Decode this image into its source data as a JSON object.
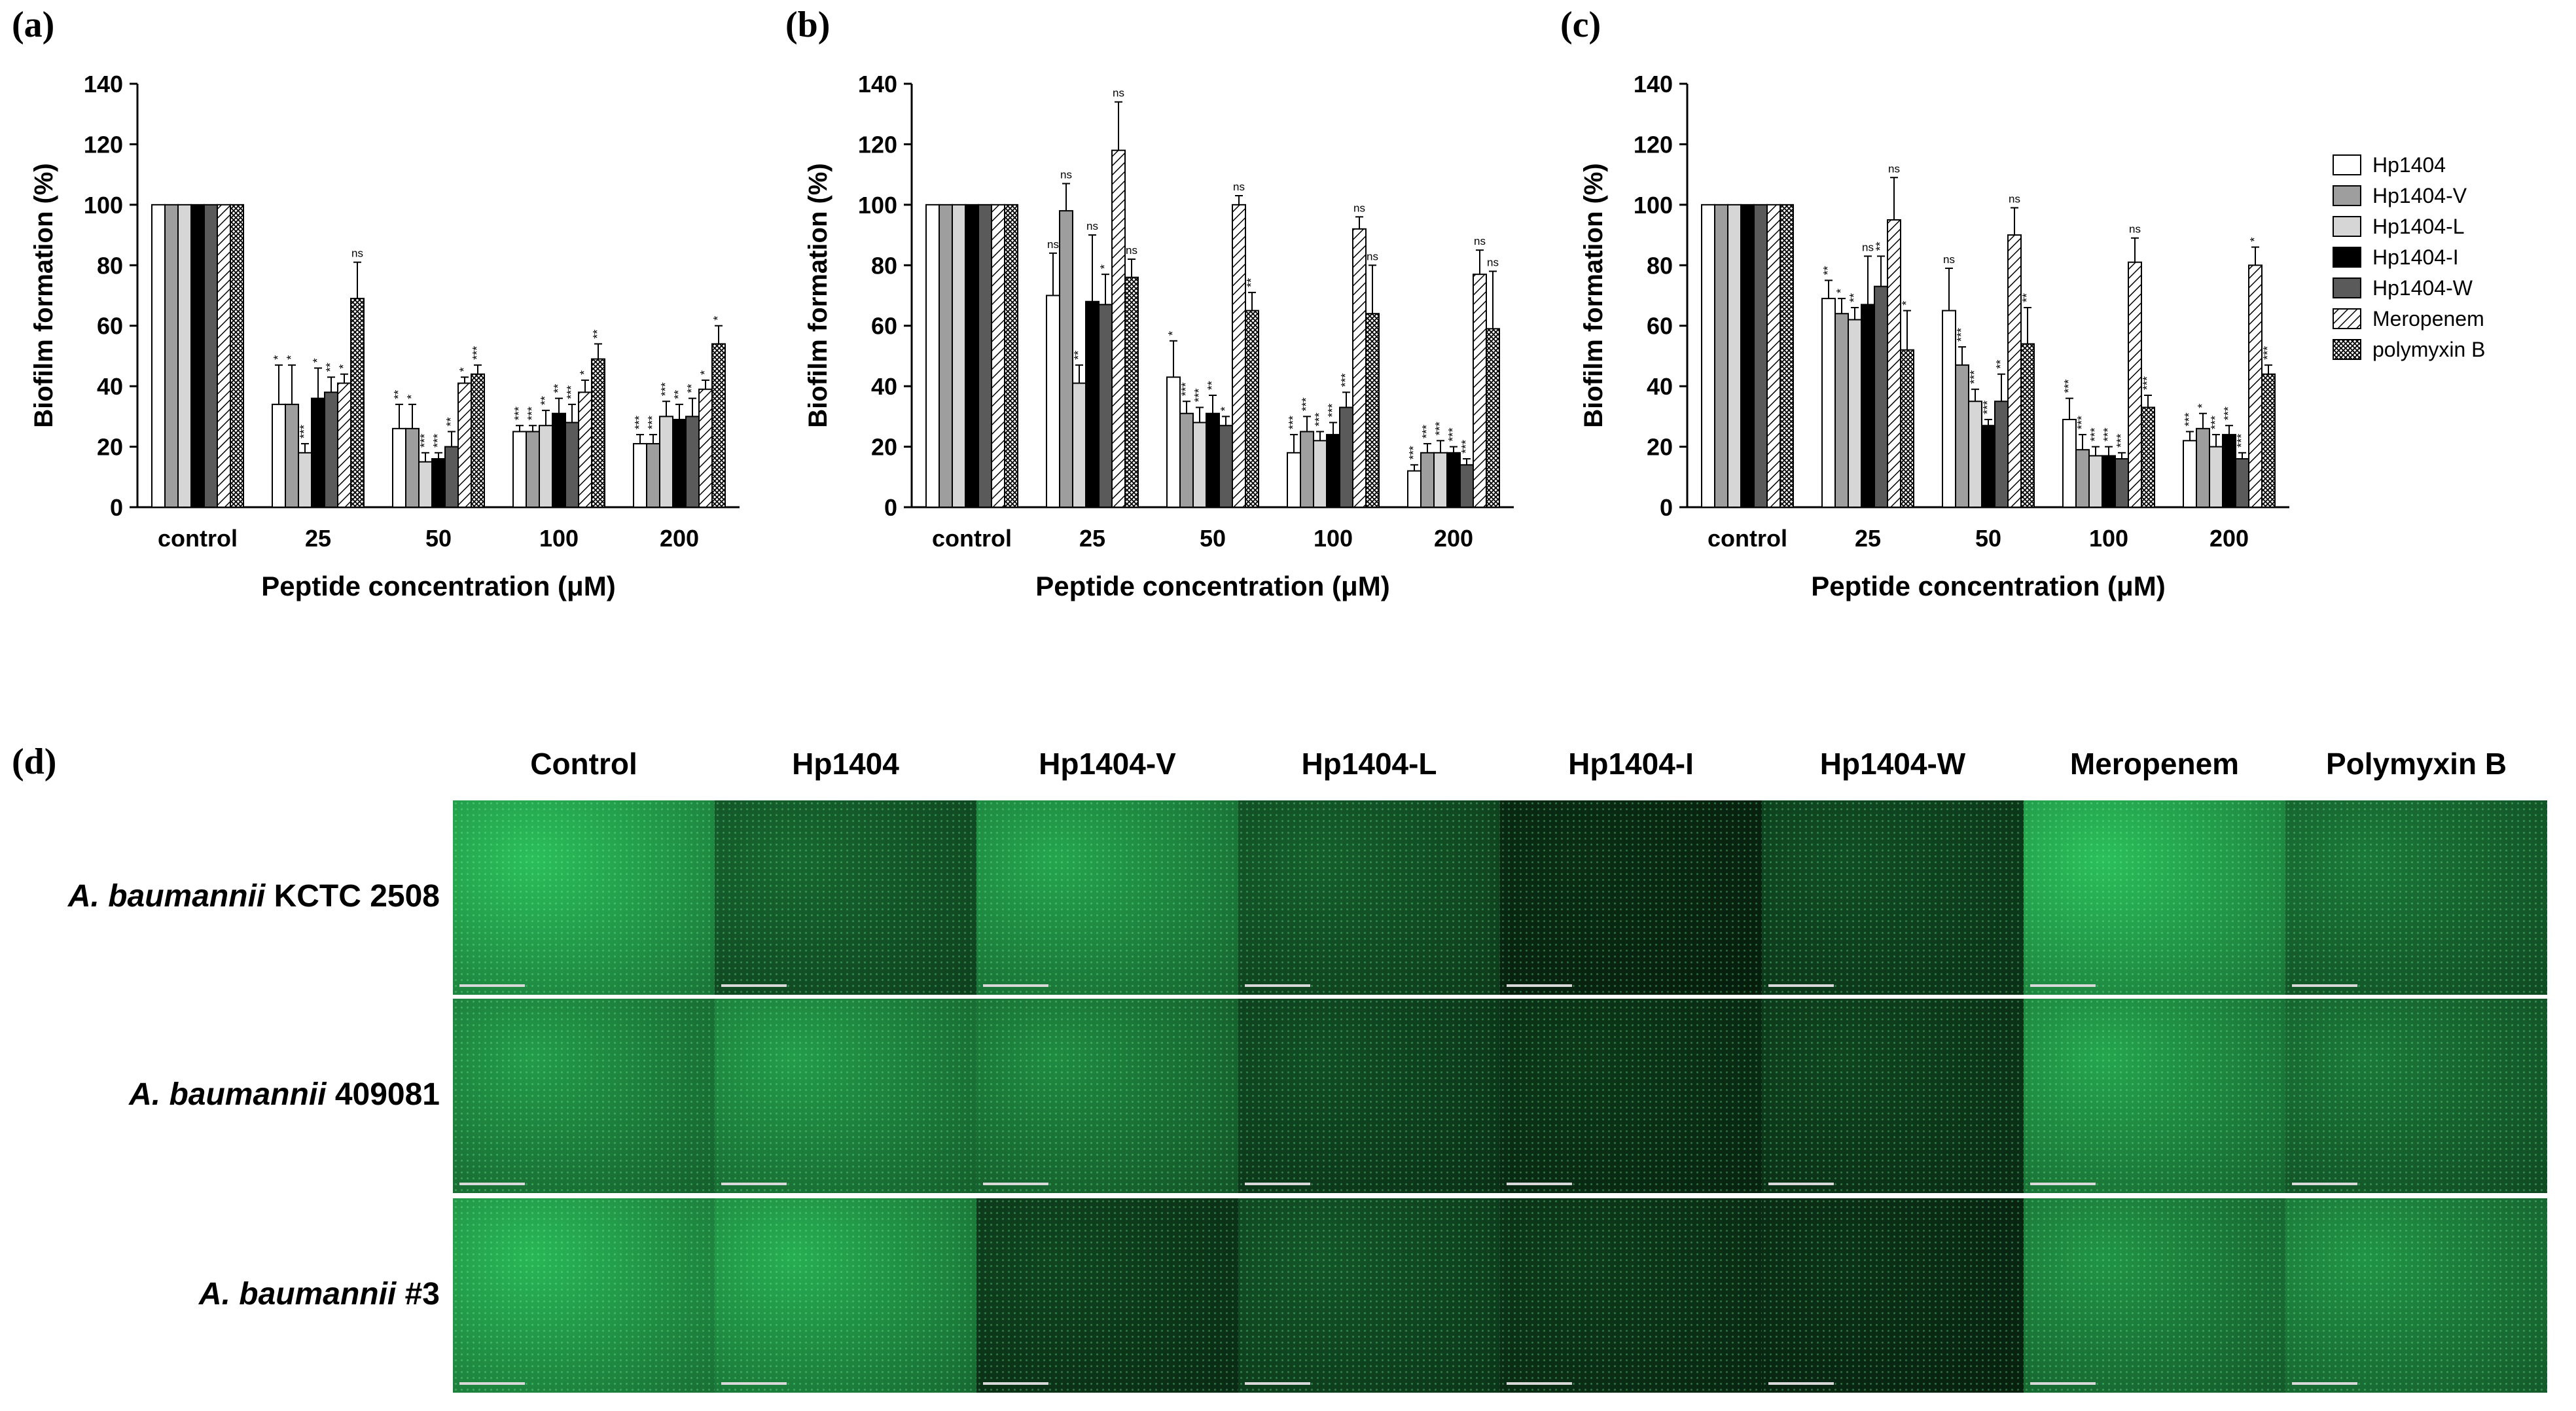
{
  "panel_labels": [
    "(a)",
    "(b)",
    "(c)",
    "(d)"
  ],
  "legend": {
    "entries": [
      "Hp1404",
      "Hp1404-V",
      "Hp1404-L",
      "Hp1404-I",
      "Hp1404-W",
      "Meropenem",
      "polymyxin B"
    ],
    "fills": [
      "white",
      "#9e9e9e",
      "#d6d6d6",
      "#000000",
      "#5a5a5a",
      "hatch-diag",
      "hatch-cross"
    ]
  },
  "chart_data": [
    {
      "type": "bar",
      "panel": "(a)",
      "title": "",
      "xlabel": "Peptide concentration (μM)",
      "ylabel": "Biofilm formation (%)",
      "ylim": [
        0,
        140
      ],
      "yticks": [
        0,
        20,
        40,
        60,
        80,
        100,
        120,
        140
      ],
      "categories": [
        "control",
        "25",
        "50",
        "100",
        "200"
      ],
      "series": [
        {
          "name": "Hp1404",
          "values": [
            100,
            34,
            26,
            25,
            21
          ],
          "errors": [
            0,
            13,
            8,
            2,
            3
          ],
          "sig": [
            "",
            "*",
            "**",
            "***",
            "***"
          ]
        },
        {
          "name": "Hp1404-V",
          "values": [
            100,
            34,
            26,
            25,
            21
          ],
          "errors": [
            0,
            13,
            8,
            2,
            3
          ],
          "sig": [
            "",
            "*",
            "*",
            "***",
            "***"
          ]
        },
        {
          "name": "Hp1404-L",
          "values": [
            100,
            18,
            15,
            27,
            30
          ],
          "errors": [
            0,
            3,
            3,
            5,
            5
          ],
          "sig": [
            "",
            "***",
            "***",
            "**",
            "***"
          ]
        },
        {
          "name": "Hp1404-I",
          "values": [
            100,
            36,
            16,
            31,
            29
          ],
          "errors": [
            0,
            10,
            2,
            5,
            5
          ],
          "sig": [
            "",
            "*",
            "***",
            "**",
            "**"
          ]
        },
        {
          "name": "Hp1404-W",
          "values": [
            100,
            38,
            20,
            28,
            30
          ],
          "errors": [
            0,
            5,
            5,
            6,
            6
          ],
          "sig": [
            "",
            "**",
            "**",
            "***",
            "**"
          ]
        },
        {
          "name": "Meropenem",
          "values": [
            100,
            41,
            41,
            38,
            39
          ],
          "errors": [
            0,
            3,
            2,
            4,
            3
          ],
          "sig": [
            "",
            "*",
            "*",
            "*",
            "*"
          ]
        },
        {
          "name": "polymyxin B",
          "values": [
            100,
            69,
            44,
            49,
            54
          ],
          "errors": [
            0,
            12,
            3,
            5,
            6
          ],
          "sig": [
            "",
            "ns",
            "***",
            "**",
            "*"
          ]
        }
      ]
    },
    {
      "type": "bar",
      "panel": "(b)",
      "title": "",
      "xlabel": "Peptide concentration (μM)",
      "ylabel": "Biofilm formation (%)",
      "ylim": [
        0,
        140
      ],
      "yticks": [
        0,
        20,
        40,
        60,
        80,
        100,
        120,
        140
      ],
      "categories": [
        "control",
        "25",
        "50",
        "100",
        "200"
      ],
      "series": [
        {
          "name": "Hp1404",
          "values": [
            100,
            70,
            43,
            18,
            12
          ],
          "errors": [
            0,
            14,
            12,
            6,
            2
          ],
          "sig": [
            "",
            "ns",
            "*",
            "***",
            "***"
          ]
        },
        {
          "name": "Hp1404-V",
          "values": [
            100,
            98,
            31,
            25,
            18
          ],
          "errors": [
            0,
            9,
            4,
            5,
            3
          ],
          "sig": [
            "",
            "ns",
            "***",
            "***",
            "***"
          ]
        },
        {
          "name": "Hp1404-L",
          "values": [
            100,
            41,
            28,
            22,
            18
          ],
          "errors": [
            0,
            6,
            5,
            3,
            4
          ],
          "sig": [
            "",
            "**",
            "***",
            "***",
            "***"
          ]
        },
        {
          "name": "Hp1404-I",
          "values": [
            100,
            68,
            31,
            24,
            18
          ],
          "errors": [
            0,
            22,
            6,
            4,
            2
          ],
          "sig": [
            "",
            "ns",
            "**",
            "***",
            "***"
          ]
        },
        {
          "name": "Hp1404-W",
          "values": [
            100,
            67,
            27,
            33,
            14
          ],
          "errors": [
            0,
            10,
            3,
            5,
            2
          ],
          "sig": [
            "",
            "*",
            "*",
            "***",
            "***"
          ]
        },
        {
          "name": "Meropenem",
          "values": [
            100,
            118,
            100,
            92,
            77
          ],
          "errors": [
            0,
            16,
            3,
            4,
            8
          ],
          "sig": [
            "",
            "ns",
            "ns",
            "ns",
            "ns"
          ]
        },
        {
          "name": "polymyxin B",
          "values": [
            100,
            76,
            65,
            64,
            59
          ],
          "errors": [
            0,
            6,
            6,
            16,
            19
          ],
          "sig": [
            "",
            "ns",
            "**",
            "ns",
            "ns"
          ]
        }
      ]
    },
    {
      "type": "bar",
      "panel": "(c)",
      "title": "",
      "xlabel": "Peptide concentration (μM)",
      "ylabel": "Biofilm formation (%)",
      "ylim": [
        0,
        140
      ],
      "yticks": [
        0,
        20,
        40,
        60,
        80,
        100,
        120,
        140
      ],
      "categories": [
        "control",
        "25",
        "50",
        "100",
        "200"
      ],
      "series": [
        {
          "name": "Hp1404",
          "values": [
            100,
            69,
            65,
            29,
            22
          ],
          "errors": [
            0,
            6,
            14,
            7,
            3
          ],
          "sig": [
            "",
            "**",
            "ns",
            "***",
            "***"
          ]
        },
        {
          "name": "Hp1404-V",
          "values": [
            100,
            64,
            47,
            19,
            26
          ],
          "errors": [
            0,
            5,
            6,
            5,
            5
          ],
          "sig": [
            "",
            "*",
            "***",
            "***",
            "*"
          ]
        },
        {
          "name": "Hp1404-L",
          "values": [
            100,
            62,
            35,
            17,
            20
          ],
          "errors": [
            0,
            4,
            4,
            3,
            4
          ],
          "sig": [
            "",
            "**",
            "***",
            "***",
            "***"
          ]
        },
        {
          "name": "Hp1404-I",
          "values": [
            100,
            67,
            27,
            17,
            24
          ],
          "errors": [
            0,
            16,
            2,
            3,
            3
          ],
          "sig": [
            "",
            "ns",
            "***",
            "***",
            "***"
          ]
        },
        {
          "name": "Hp1404-W",
          "values": [
            100,
            73,
            35,
            16,
            16
          ],
          "errors": [
            0,
            10,
            9,
            2,
            2
          ],
          "sig": [
            "",
            "**",
            "**",
            "***",
            "***"
          ]
        },
        {
          "name": "Meropenem",
          "values": [
            100,
            95,
            90,
            81,
            80
          ],
          "errors": [
            0,
            14,
            9,
            8,
            6
          ],
          "sig": [
            "",
            "ns",
            "ns",
            "ns",
            "*"
          ]
        },
        {
          "name": "polymyxin B",
          "values": [
            100,
            52,
            54,
            33,
            44
          ],
          "errors": [
            0,
            13,
            12,
            4,
            3
          ],
          "sig": [
            "",
            "*",
            "**",
            "***",
            "***"
          ]
        }
      ]
    }
  ],
  "micrographs": {
    "panel_label": "(d)",
    "columns": [
      "Control",
      "Hp1404",
      "Hp1404-V",
      "Hp1404-L",
      "Hp1404-I",
      "Hp1404-W",
      "Meropenem",
      "Polymyxin B"
    ],
    "rows": [
      {
        "species": "A. baumannii",
        "strain": " KCTC 2508",
        "brightness": [
          0.95,
          0.45,
          0.8,
          0.4,
          0.12,
          0.3,
          0.95,
          0.55
        ]
      },
      {
        "species": "A. baumannii",
        "strain": " 409081",
        "brightness": [
          0.75,
          0.75,
          0.65,
          0.3,
          0.18,
          0.25,
          0.8,
          0.55
        ]
      },
      {
        "species": "A. baumannii",
        "strain": " #3",
        "brightness": [
          0.9,
          0.85,
          0.25,
          0.35,
          0.2,
          0.15,
          0.7,
          0.7
        ]
      }
    ]
  }
}
